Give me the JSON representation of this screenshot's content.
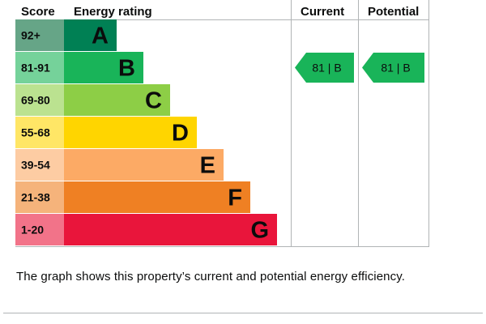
{
  "header": {
    "score_label": "Score",
    "rating_label": "Energy rating",
    "current_label": "Current",
    "potential_label": "Potential"
  },
  "chart_data": {
    "type": "bar",
    "bands": [
      {
        "score": "92+",
        "letter": "A",
        "color": "#008054",
        "score_bg": "#66a587"
      },
      {
        "score": "81-91",
        "letter": "B",
        "color": "#19b459",
        "score_bg": "#75d29a"
      },
      {
        "score": "69-80",
        "letter": "C",
        "color": "#8dce46",
        "score_bg": "#bbe290"
      },
      {
        "score": "55-68",
        "letter": "D",
        "color": "#ffd500",
        "score_bg": "#ffe666"
      },
      {
        "score": "39-54",
        "letter": "E",
        "color": "#fcaa65",
        "score_bg": "#fdcca3"
      },
      {
        "score": "21-38",
        "letter": "F",
        "color": "#ef8023",
        "score_bg": "#f5b37b"
      },
      {
        "score": "1-20",
        "letter": "G",
        "color": "#e9153b",
        "score_bg": "#f27389"
      }
    ],
    "current": {
      "value": 81,
      "letter": "B",
      "text": "81 |  B",
      "color": "#19b459"
    },
    "potential": {
      "value": 81,
      "letter": "B",
      "text": "81 |  B",
      "color": "#19b459"
    }
  },
  "caption": "The graph shows this property’s current and potential energy efficiency."
}
